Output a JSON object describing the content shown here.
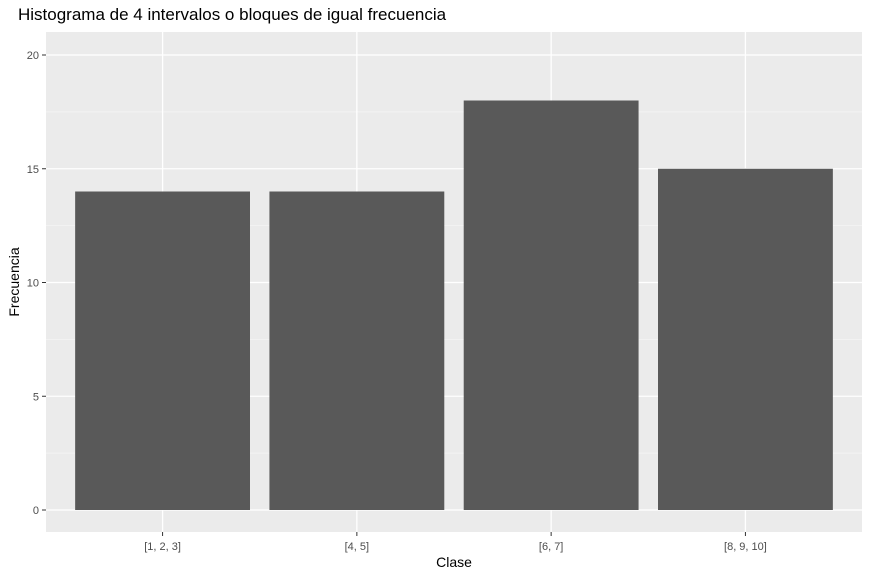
{
  "chart_data": {
    "type": "bar",
    "title": "Histograma de 4 intervalos o bloques de igual frecuencia",
    "xlabel": "Clase",
    "ylabel": "Frecuencia",
    "categories": [
      "[1, 2, 3]",
      "[4, 5]",
      "[6, 7]",
      "[8, 9, 10]"
    ],
    "values": [
      14,
      14,
      18,
      15
    ],
    "ylim": [
      0,
      20
    ],
    "yticks": [
      0,
      5,
      10,
      15,
      20
    ],
    "grid": true,
    "legend": "none",
    "colors": {
      "bar": "#595959",
      "panel_background": "#ebebeb",
      "grid_major": "#ffffff",
      "grid_minor": "#f5f5f5",
      "tick_text": "#4d4d4d"
    }
  }
}
